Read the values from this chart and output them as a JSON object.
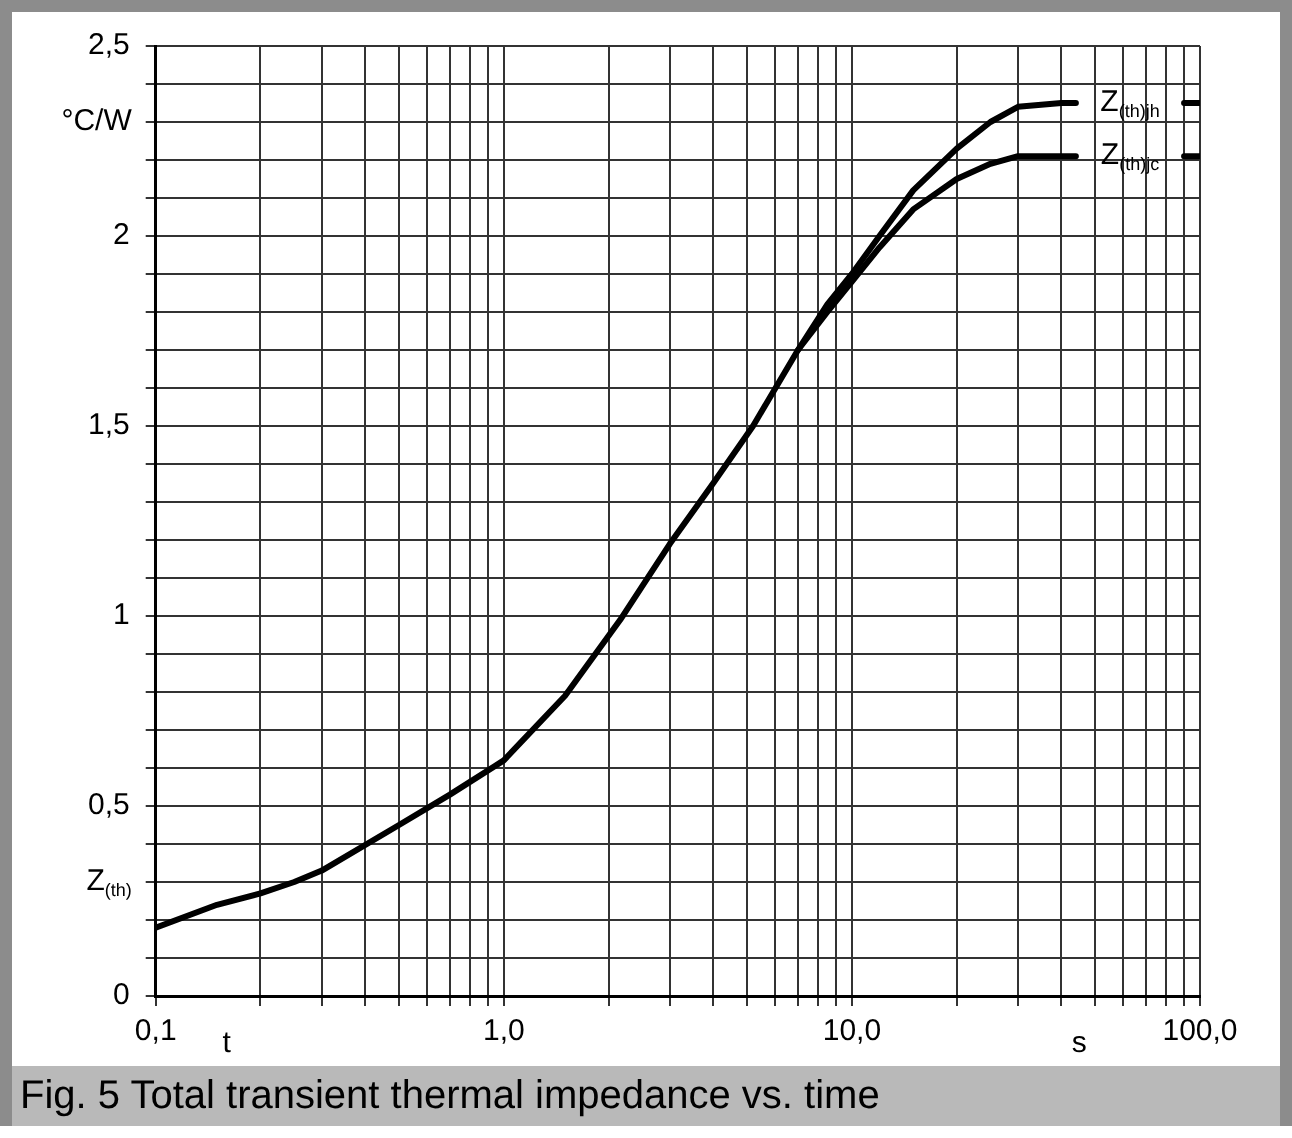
{
  "chart_data": {
    "type": "line",
    "title": "Fig. 5 Total transient thermal impedance vs. time",
    "xlabel": "t",
    "ylabel": "Z$_{(th)}$",
    "annotations": [
      "°C/W",
      "s"
    ],
    "log": "x",
    "grid": true,
    "legend": false,
    "marker": "none",
    "line_style": "solid",
    "xlim": [
      0.1,
      100
    ],
    "ylim": [
      0,
      2.5
    ],
    "xticks": [
      {
        "value": 0.1,
        "label": "0,1"
      },
      {
        "value": 0.2,
        "label": null
      },
      {
        "value": 0.3,
        "label": null
      },
      {
        "value": 0.4,
        "label": null
      },
      {
        "value": 0.5,
        "label": null
      },
      {
        "value": 0.6,
        "label": null
      },
      {
        "value": 0.7,
        "label": null
      },
      {
        "value": 0.8,
        "label": null
      },
      {
        "value": 0.9,
        "label": null
      },
      {
        "value": 1,
        "label": "1,0"
      },
      {
        "value": 2,
        "label": null
      },
      {
        "value": 3,
        "label": null
      },
      {
        "value": 4,
        "label": null
      },
      {
        "value": 5,
        "label": null
      },
      {
        "value": 6,
        "label": null
      },
      {
        "value": 7,
        "label": null
      },
      {
        "value": 8,
        "label": null
      },
      {
        "value": 9,
        "label": null
      },
      {
        "value": 10,
        "label": "10,0"
      },
      {
        "value": 20,
        "label": null
      },
      {
        "value": 30,
        "label": null
      },
      {
        "value": 40,
        "label": null
      },
      {
        "value": 50,
        "label": null
      },
      {
        "value": 60,
        "label": null
      },
      {
        "value": 70,
        "label": null
      },
      {
        "value": 80,
        "label": null
      },
      {
        "value": 90,
        "label": null
      },
      {
        "value": 100,
        "label": "100,0"
      }
    ],
    "yticks": [
      0,
      {
        "value": 0.1,
        "label": null
      },
      {
        "value": 0.2,
        "label": null
      },
      {
        "value": 0.3,
        "label": null
      },
      {
        "value": 0.4,
        "label": null
      },
      {
        "value": 0.5,
        "label": "0,5"
      },
      {
        "value": 0.6,
        "label": null
      },
      {
        "value": 0.7,
        "label": null
      },
      {
        "value": 0.8,
        "label": null
      },
      {
        "value": 0.9,
        "label": null
      },
      1,
      {
        "value": 1.1,
        "label": null
      },
      {
        "value": 1.2,
        "label": null
      },
      {
        "value": 1.3,
        "label": null
      },
      {
        "value": 1.4,
        "label": null
      },
      {
        "value": 1.5,
        "label": "1,5"
      },
      {
        "value": 1.6,
        "label": null
      },
      {
        "value": 1.7,
        "label": null
      },
      {
        "value": 1.8,
        "label": null
      },
      {
        "value": 1.9,
        "label": null
      },
      2,
      {
        "value": 2.1,
        "label": null
      },
      {
        "value": 2.2,
        "label": null
      },
      {
        "value": 2.3,
        "label": null
      },
      {
        "value": 2.4,
        "label": null
      },
      {
        "value": 2.5,
        "label": "2,5"
      }
    ],
    "x": [
      0.1,
      0.15,
      0.2,
      0.25,
      0.3,
      0.5,
      0.7,
      1,
      1.5,
      2.16,
      3,
      4,
      5.2,
      7,
      8.5,
      10,
      12,
      15,
      20,
      25,
      30,
      40,
      44,
      60,
      90,
      100
    ],
    "series": [
      {
        "name": "Z$_{(th)jh}$",
        "color": "#000000",
        "values": [
          0.18,
          0.24,
          0.27,
          0.3,
          0.33,
          0.45,
          0.53,
          0.62,
          0.79,
          0.99,
          1.19,
          1.35,
          1.5,
          1.7,
          1.82,
          1.9,
          2.0,
          2.12,
          2.23,
          2.3,
          2.34,
          2.35,
          2.35,
          null,
          2.35,
          2.35
        ]
      },
      {
        "name": "Z$_{(th)jc}$",
        "color": "#000000",
        "values": [
          null,
          null,
          null,
          null,
          null,
          null,
          null,
          null,
          null,
          null,
          null,
          null,
          null,
          1.7,
          1.8,
          1.88,
          1.97,
          2.07,
          2.15,
          2.19,
          2.21,
          2.21,
          2.21,
          null,
          2.21,
          2.21
        ]
      }
    ]
  }
}
